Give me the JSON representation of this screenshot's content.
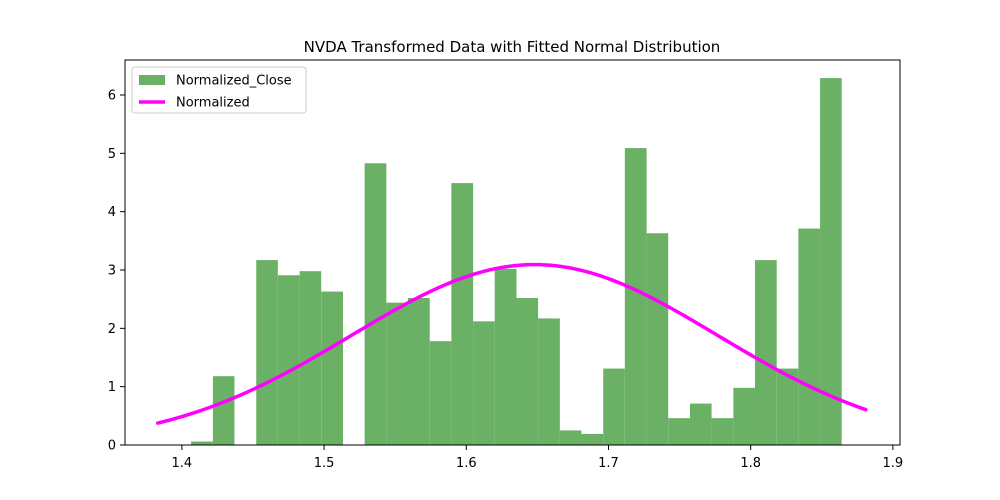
{
  "chart_data": {
    "type": "bar",
    "title": "NVDA Transformed Data with Fitted Normal Distribution",
    "xlabel": "",
    "ylabel": "",
    "xlim": [
      1.36,
      1.905
    ],
    "ylim": [
      0,
      6.6
    ],
    "xticks": [
      {
        "value": 1.4,
        "label": "1.4"
      },
      {
        "value": 1.5,
        "label": "1.5"
      },
      {
        "value": 1.6,
        "label": "1.6"
      },
      {
        "value": 1.7,
        "label": "1.7"
      },
      {
        "value": 1.8,
        "label": "1.8"
      },
      {
        "value": 1.9,
        "label": "1.9"
      }
    ],
    "yticks": [
      {
        "value": 0,
        "label": "0"
      },
      {
        "value": 1,
        "label": "1"
      },
      {
        "value": 2,
        "label": "2"
      },
      {
        "value": 3,
        "label": "3"
      },
      {
        "value": 4,
        "label": "4"
      },
      {
        "value": 5,
        "label": "5"
      },
      {
        "value": 6,
        "label": "6"
      }
    ],
    "grid": false,
    "legend": {
      "placement": "top-left",
      "entries": [
        {
          "label": "Normalized_Close",
          "kind": "bar",
          "color": "#6ab165"
        },
        {
          "label": "Normalized",
          "kind": "line",
          "color": "#ff00ff"
        }
      ]
    },
    "histogram": {
      "name": "Normalized_Close",
      "color": "#6ab165",
      "bins": [
        {
          "x0": 1.4065,
          "x1": 1.4218,
          "value": 0.06
        },
        {
          "x0": 1.4218,
          "x1": 1.437,
          "value": 1.18
        },
        {
          "x0": 1.437,
          "x1": 1.4523,
          "value": 0
        },
        {
          "x0": 1.4523,
          "x1": 1.4675,
          "value": 3.17
        },
        {
          "x0": 1.4675,
          "x1": 1.4828,
          "value": 2.91
        },
        {
          "x0": 1.4828,
          "x1": 1.498,
          "value": 2.98
        },
        {
          "x0": 1.498,
          "x1": 1.5133,
          "value": 2.63
        },
        {
          "x0": 1.5133,
          "x1": 1.5285,
          "value": 0
        },
        {
          "x0": 1.5285,
          "x1": 1.5438,
          "value": 4.83
        },
        {
          "x0": 1.5438,
          "x1": 1.559,
          "value": 2.44
        },
        {
          "x0": 1.559,
          "x1": 1.5743,
          "value": 2.52
        },
        {
          "x0": 1.5743,
          "x1": 1.5895,
          "value": 1.78
        },
        {
          "x0": 1.5895,
          "x1": 1.6048,
          "value": 4.49
        },
        {
          "x0": 1.6048,
          "x1": 1.62,
          "value": 2.12
        },
        {
          "x0": 1.62,
          "x1": 1.6353,
          "value": 3.02
        },
        {
          "x0": 1.6353,
          "x1": 1.6505,
          "value": 2.52
        },
        {
          "x0": 1.6505,
          "x1": 1.6658,
          "value": 2.17
        },
        {
          "x0": 1.6658,
          "x1": 1.681,
          "value": 0.25
        },
        {
          "x0": 1.681,
          "x1": 1.6963,
          "value": 0.19
        },
        {
          "x0": 1.6963,
          "x1": 1.7115,
          "value": 1.31
        },
        {
          "x0": 1.7115,
          "x1": 1.7268,
          "value": 5.09
        },
        {
          "x0": 1.7268,
          "x1": 1.742,
          "value": 3.63
        },
        {
          "x0": 1.742,
          "x1": 1.7573,
          "value": 0.46
        },
        {
          "x0": 1.7573,
          "x1": 1.7725,
          "value": 0.71
        },
        {
          "x0": 1.7725,
          "x1": 1.7878,
          "value": 0.46
        },
        {
          "x0": 1.7878,
          "x1": 1.803,
          "value": 0.98
        },
        {
          "x0": 1.803,
          "x1": 1.8183,
          "value": 3.17
        },
        {
          "x0": 1.8183,
          "x1": 1.8335,
          "value": 1.31
        },
        {
          "x0": 1.8335,
          "x1": 1.8488,
          "value": 3.71
        },
        {
          "x0": 1.8488,
          "x1": 1.864,
          "value": 6.29
        }
      ]
    },
    "fit_line": {
      "name": "Normalized",
      "color": "#ff00ff",
      "distribution": "normal",
      "mean": 1.648,
      "std": 0.129,
      "x_range": [
        1.383,
        1.881
      ]
    }
  }
}
